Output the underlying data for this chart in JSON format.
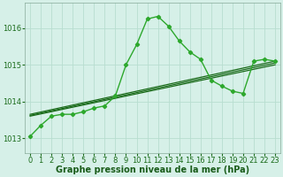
{
  "background_color": "#d6f0e8",
  "grid_color": "#b8ddd0",
  "line_color_dark": "#1a6b1a",
  "line_color_bright": "#2da82d",
  "xlabel": "Graphe pression niveau de la mer (hPa)",
  "xlabel_fontsize": 7,
  "tick_fontsize": 6,
  "xlim": [
    -0.5,
    23.5
  ],
  "ylim": [
    1012.6,
    1016.7
  ],
  "yticks": [
    1013,
    1014,
    1015,
    1016
  ],
  "xticks": [
    0,
    1,
    2,
    3,
    4,
    5,
    6,
    7,
    8,
    9,
    10,
    11,
    12,
    13,
    14,
    15,
    16,
    17,
    18,
    19,
    20,
    21,
    22,
    23
  ],
  "series_main": {
    "x": [
      0,
      1,
      2,
      3,
      4,
      5,
      6,
      7,
      8,
      9,
      10,
      11,
      12,
      13,
      14,
      15,
      16,
      17,
      18,
      19,
      20,
      21,
      22,
      23
    ],
    "y": [
      1013.05,
      1013.35,
      1013.6,
      1013.65,
      1013.65,
      1013.72,
      1013.82,
      1013.88,
      1014.15,
      1015.0,
      1015.55,
      1016.25,
      1016.32,
      1016.05,
      1015.65,
      1015.35,
      1015.15,
      1014.58,
      1014.42,
      1014.28,
      1014.22,
      1015.1,
      1015.15,
      1015.1
    ]
  },
  "series_flat1": {
    "x": [
      0,
      23
    ],
    "y": [
      1013.65,
      1015.1
    ]
  },
  "series_flat2": {
    "x": [
      0,
      23
    ],
    "y": [
      1013.62,
      1015.05
    ]
  },
  "series_flat3": {
    "x": [
      0,
      23
    ],
    "y": [
      1013.6,
      1015.0
    ]
  }
}
